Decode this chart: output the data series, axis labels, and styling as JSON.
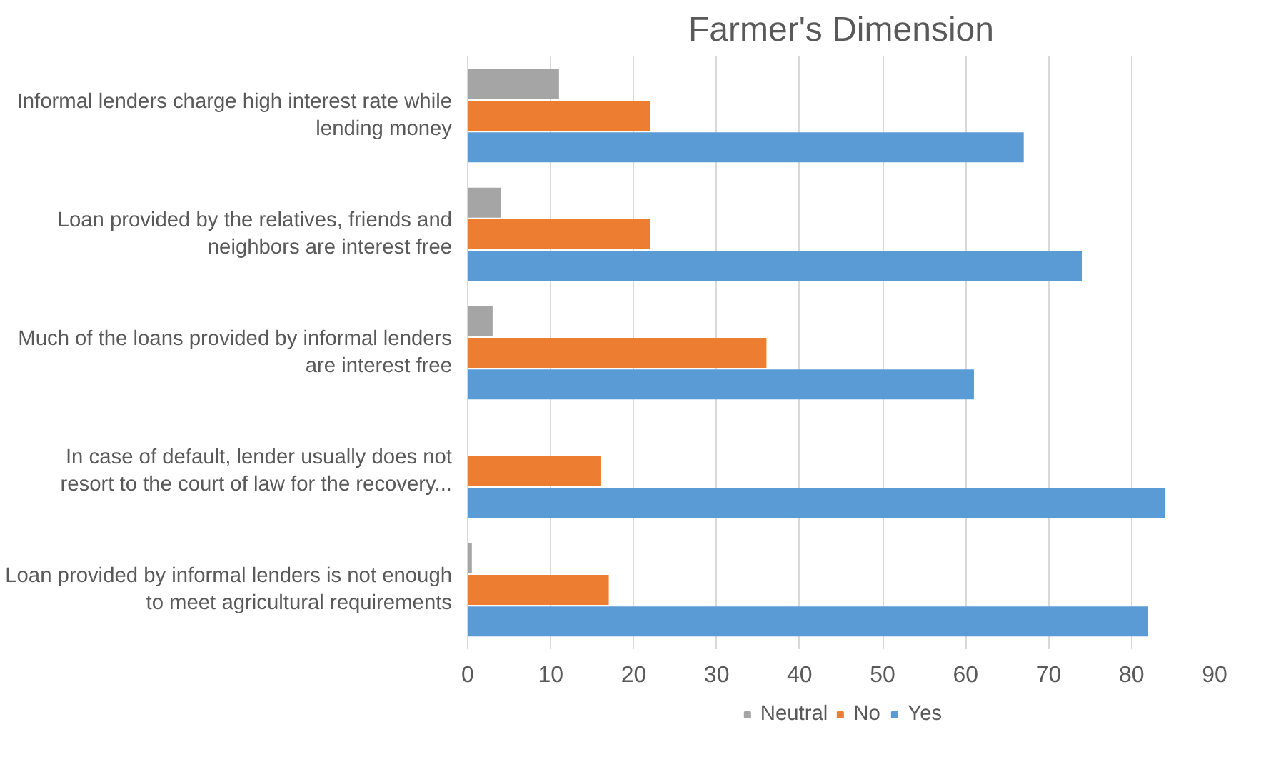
{
  "chart_data": {
    "type": "bar",
    "orientation": "horizontal",
    "title": "Farmer's Dimension",
    "categories": [
      "Informal lenders charge high interest rate while lending money",
      "Loan provided by the relatives, friends and neighbors are interest free",
      "Much of the loans provided by informal lenders are interest free",
      "In case of default, lender usually does not resort to the court of law for the recovery...",
      "Loan provided by informal lenders is not enough to meet agricultural requirements"
    ],
    "series": [
      {
        "name": "Neutral",
        "color": "#a5a5a5",
        "values": [
          11,
          4,
          3,
          0,
          0.5
        ]
      },
      {
        "name": "No",
        "color": "#ed7d31",
        "values": [
          22,
          22,
          36,
          16,
          17
        ]
      },
      {
        "name": "Yes",
        "color": "#5b9bd5",
        "values": [
          67,
          74,
          61,
          84,
          82
        ]
      }
    ],
    "xlim": [
      0,
      90
    ],
    "xticks": [
      0,
      10,
      20,
      30,
      40,
      50,
      60,
      70,
      80,
      90
    ],
    "grid": "x",
    "legend": "bottom"
  }
}
